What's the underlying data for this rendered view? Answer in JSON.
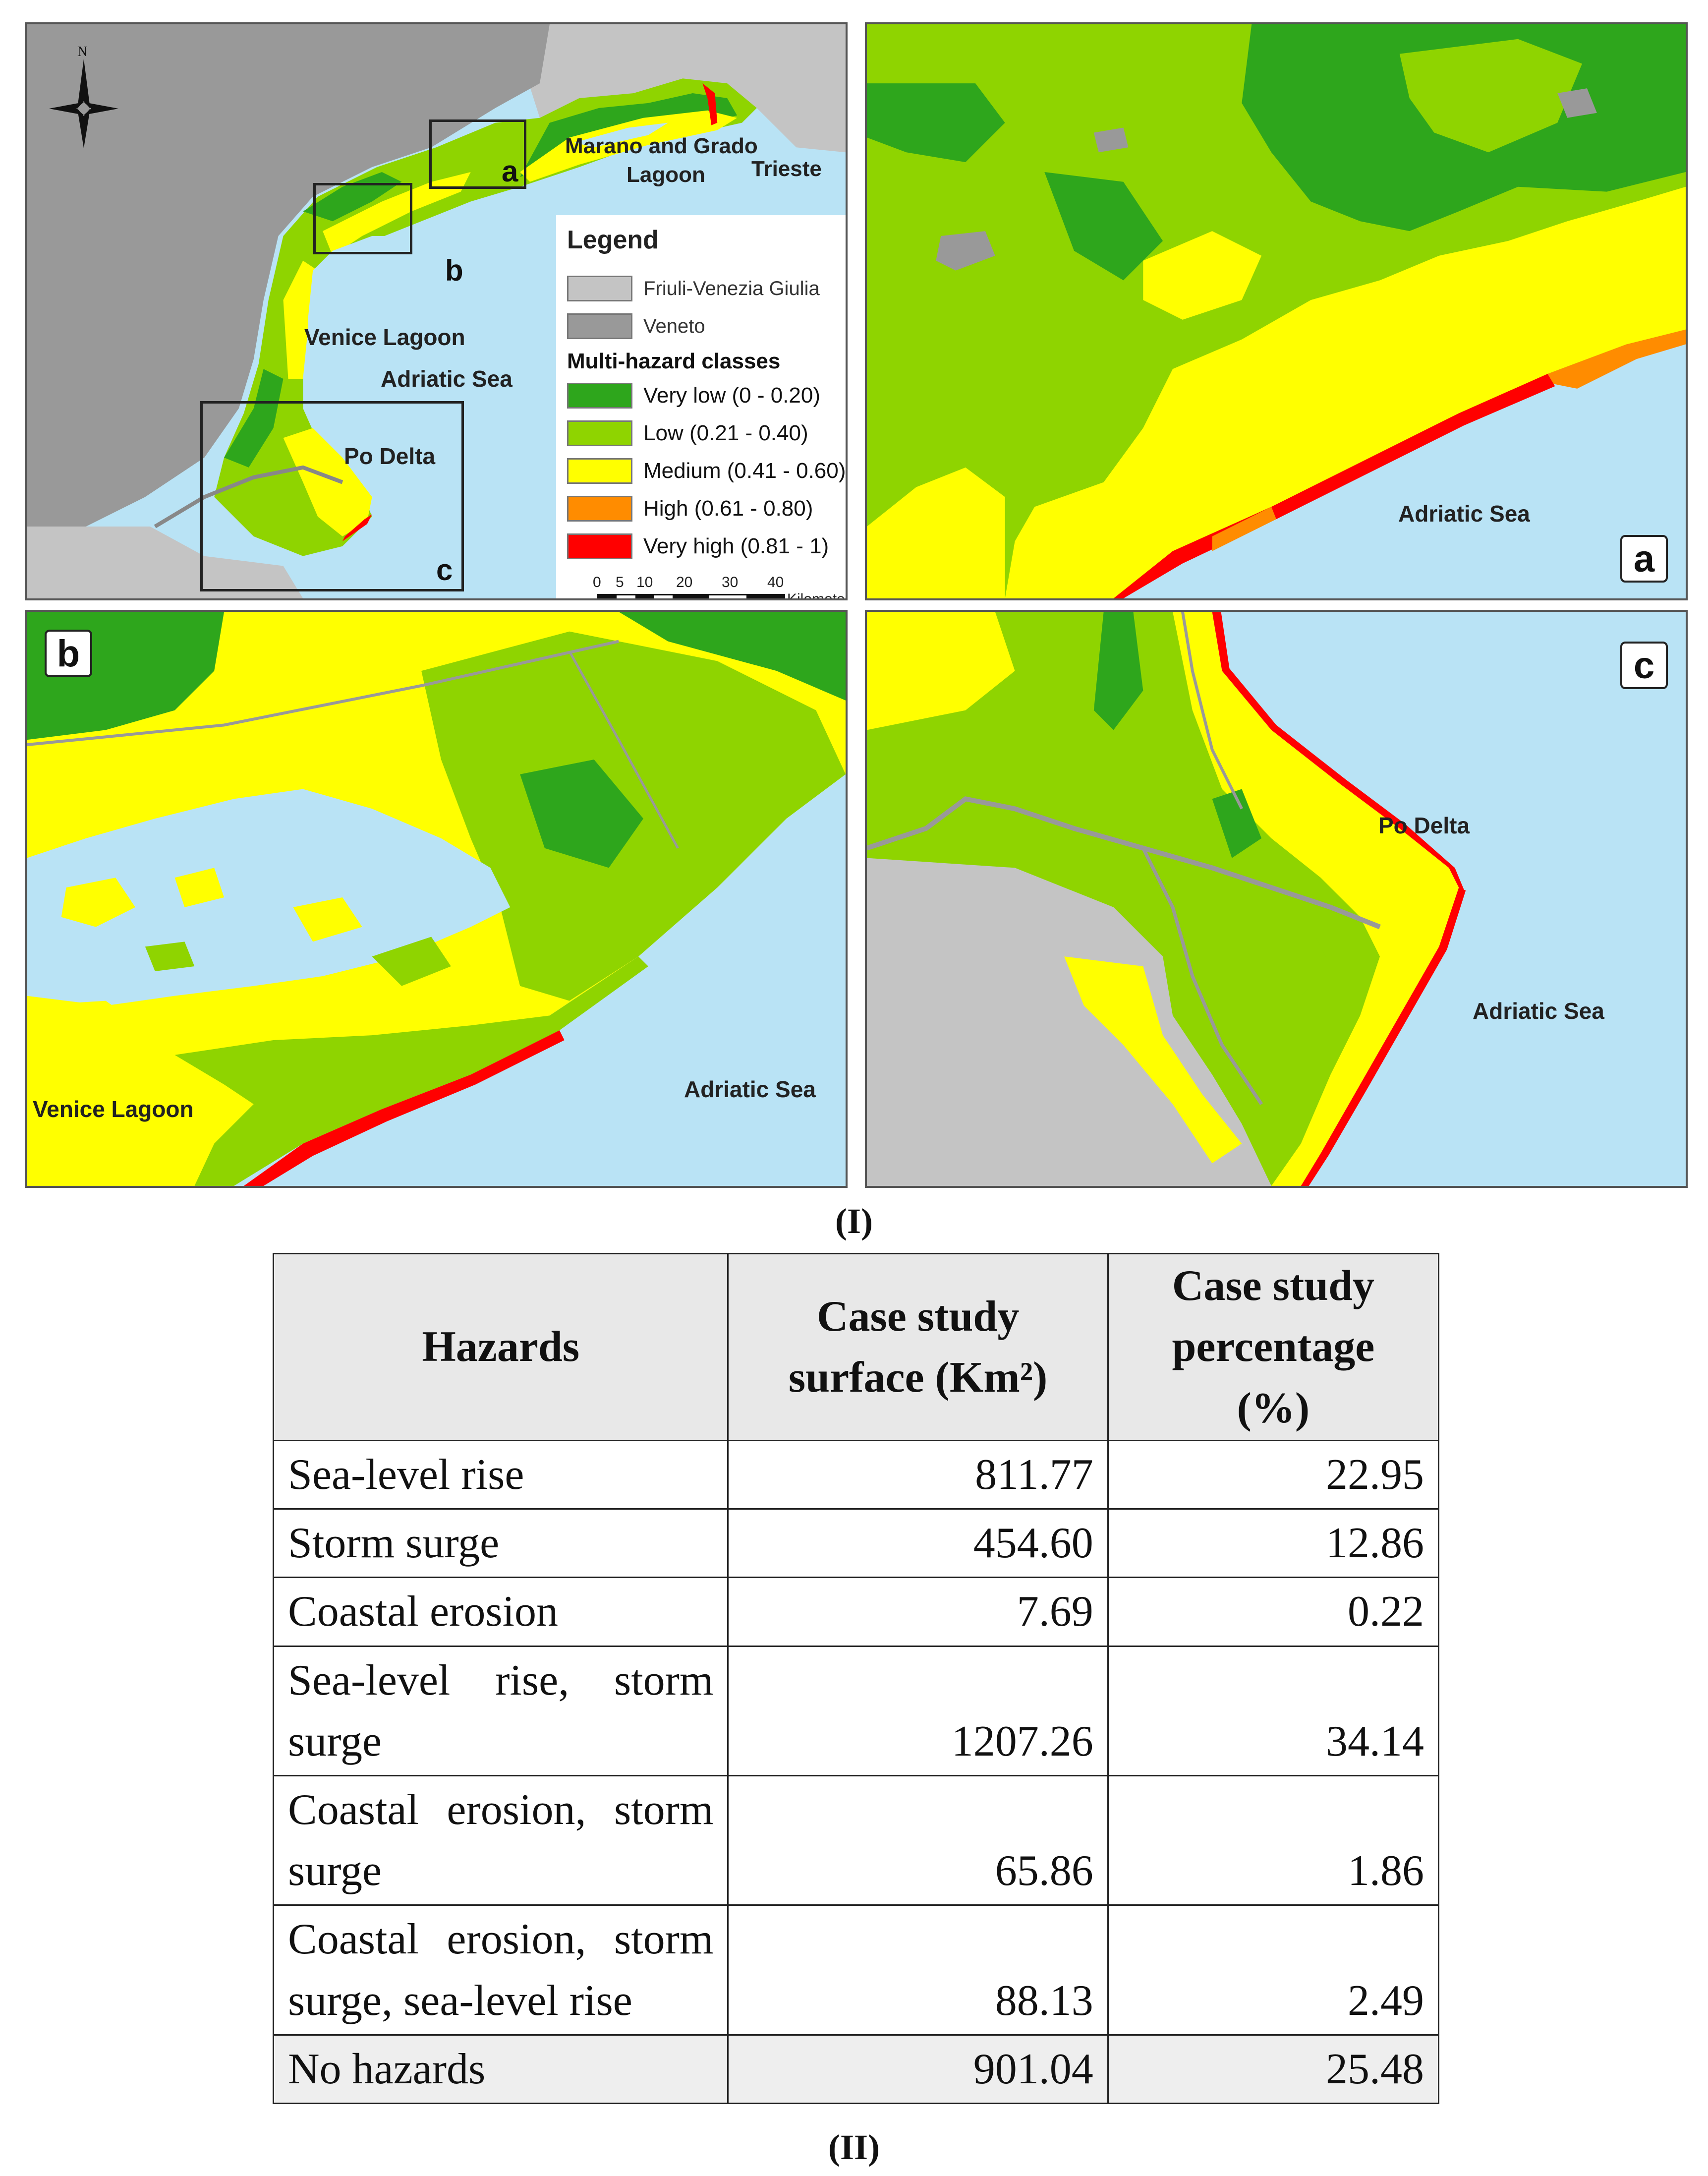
{
  "colors": {
    "very_low": "#2ea61c",
    "low": "#8fd400",
    "medium": "#ffff00",
    "high": "#ff8c00",
    "very_high": "#ff0000",
    "sea": "#b9e3f5",
    "friuli": "#c4c4c4",
    "veneto": "#999999"
  },
  "figure_part_one": {
    "overview_map": {
      "north_arrow_label": "N",
      "labels": {
        "marano_grado": "Marano and Grado",
        "lagoon": "Lagoon",
        "trieste": "Trieste",
        "venice_lagoon": "Venice Lagoon",
        "adriatic_sea": "Adriatic Sea",
        "po_delta": "Po Delta"
      },
      "inset_labels": [
        "a",
        "b",
        "c"
      ],
      "legend": {
        "title": "Legend",
        "regions": [
          {
            "label": "Friuli-Venezia Giulia",
            "color": "#c4c4c4"
          },
          {
            "label": "Veneto",
            "color": "#999999"
          }
        ],
        "classes_title": "Multi-hazard classes",
        "classes": [
          {
            "label": "Very low (0 - 0.20)",
            "color": "#2ea61c"
          },
          {
            "label": "Low (0.21 - 0.40)",
            "color": "#8fd400"
          },
          {
            "label": "Medium (0.41 - 0.60)",
            "color": "#ffff00"
          },
          {
            "label": "High (0.61 - 0.80)",
            "color": "#ff8c00"
          },
          {
            "label": "Very high (0.81 - 1)",
            "color": "#ff0000"
          }
        ],
        "scale_ticks": [
          "0",
          "5",
          "10",
          "20",
          "30",
          "40"
        ],
        "scale_unit": "Kilometers"
      }
    },
    "panel_a": {
      "letter": "a",
      "sea_label": "Adriatic Sea"
    },
    "panel_b": {
      "letter": "b",
      "lagoon_label": "Venice Lagoon",
      "sea_label": "Adriatic Sea"
    },
    "panel_c": {
      "letter": "c",
      "delta_label": "Po Delta",
      "sea_label": "Adriatic Sea"
    },
    "caption": "(I)"
  },
  "figure_part_two": {
    "table": {
      "headers": {
        "col1": "Hazards",
        "col2_line1": "Case study",
        "col2_line2": "surface (Km²)",
        "col3_line1": "Case study",
        "col3_line2": "percentage",
        "col3_line3": "(%)"
      },
      "rows": [
        {
          "hazard": "Sea-level rise",
          "surface": "811.77",
          "percentage": "22.95"
        },
        {
          "hazard": "Storm surge",
          "surface": "454.60",
          "percentage": "12.86"
        },
        {
          "hazard": "Coastal erosion",
          "surface": "7.69",
          "percentage": "0.22"
        },
        {
          "hazard": "Sea-level rise, storm surge",
          "surface": "1207.26",
          "percentage": "34.14"
        },
        {
          "hazard": "Coastal erosion, storm surge",
          "surface": "65.86",
          "percentage": "1.86"
        },
        {
          "hazard": "Coastal erosion, storm surge, sea-level rise",
          "surface": "88.13",
          "percentage": "2.49"
        },
        {
          "hazard": "No hazards",
          "surface": "901.04",
          "percentage": "25.48"
        }
      ]
    },
    "caption": "(II)"
  }
}
